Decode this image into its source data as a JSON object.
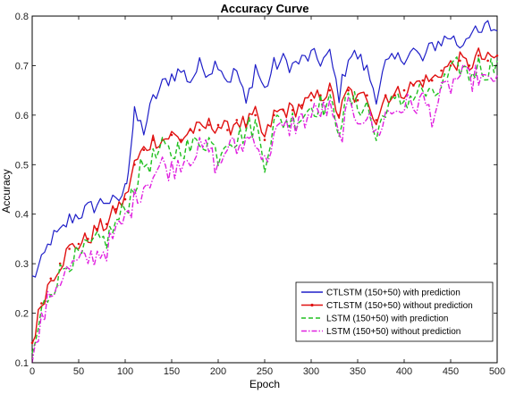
{
  "chart_data": {
    "type": "line",
    "title": "Accuracy Curve",
    "xlabel": "Epoch",
    "ylabel": "Accuracy",
    "xlim": [
      0,
      500
    ],
    "ylim": [
      0.1,
      0.8
    ],
    "xticks": [
      "0",
      "50",
      "100",
      "150",
      "200",
      "250",
      "300",
      "350",
      "400",
      "450",
      "500"
    ],
    "yticks": [
      "0.1",
      "0.2",
      "0.3",
      "0.4",
      "0.5",
      "0.6",
      "0.7",
      "0.8"
    ],
    "grid": false,
    "legend_position": "bottom-right",
    "series": [
      {
        "name": "CTLSTM (150+50) with prediction",
        "color": "#1f1fc8",
        "style": "solid",
        "x": [
          0,
          10,
          20,
          30,
          40,
          50,
          60,
          70,
          80,
          90,
          100,
          105,
          110,
          120,
          130,
          140,
          150,
          160,
          170,
          180,
          190,
          200,
          210,
          220,
          230,
          240,
          250,
          260,
          270,
          280,
          290,
          300,
          310,
          320,
          330,
          340,
          350,
          360,
          370,
          380,
          390,
          400,
          410,
          420,
          430,
          440,
          450,
          460,
          470,
          480,
          490,
          500
        ],
        "y": [
          0.27,
          0.3,
          0.35,
          0.36,
          0.39,
          0.4,
          0.41,
          0.42,
          0.43,
          0.42,
          0.45,
          0.52,
          0.6,
          0.57,
          0.63,
          0.66,
          0.68,
          0.69,
          0.67,
          0.7,
          0.69,
          0.71,
          0.67,
          0.69,
          0.62,
          0.7,
          0.65,
          0.7,
          0.71,
          0.7,
          0.71,
          0.72,
          0.71,
          0.72,
          0.64,
          0.72,
          0.72,
          0.69,
          0.64,
          0.7,
          0.71,
          0.72,
          0.73,
          0.71,
          0.74,
          0.75,
          0.76,
          0.74,
          0.77,
          0.76,
          0.78,
          0.77
        ]
      },
      {
        "name": "CTLSTM (150+50) without prediction",
        "color": "#e01010",
        "style": "solid-marker",
        "x": [
          0,
          10,
          20,
          30,
          40,
          50,
          60,
          70,
          80,
          90,
          100,
          110,
          120,
          130,
          140,
          150,
          160,
          170,
          180,
          190,
          200,
          210,
          220,
          230,
          240,
          250,
          260,
          270,
          280,
          290,
          300,
          310,
          320,
          330,
          340,
          350,
          360,
          370,
          380,
          390,
          400,
          410,
          420,
          430,
          440,
          450,
          460,
          470,
          480,
          490,
          500
        ],
        "y": [
          0.14,
          0.22,
          0.27,
          0.3,
          0.33,
          0.34,
          0.35,
          0.37,
          0.38,
          0.41,
          0.43,
          0.5,
          0.53,
          0.55,
          0.55,
          0.56,
          0.55,
          0.57,
          0.57,
          0.58,
          0.58,
          0.57,
          0.59,
          0.58,
          0.6,
          0.55,
          0.6,
          0.61,
          0.61,
          0.62,
          0.63,
          0.64,
          0.65,
          0.6,
          0.65,
          0.63,
          0.64,
          0.59,
          0.64,
          0.64,
          0.65,
          0.66,
          0.67,
          0.67,
          0.69,
          0.7,
          0.71,
          0.7,
          0.72,
          0.71,
          0.72
        ]
      },
      {
        "name": "LSTM (150+50) with prediction",
        "color": "#20c020",
        "style": "dashed",
        "x": [
          0,
          10,
          20,
          30,
          40,
          50,
          60,
          70,
          80,
          90,
          100,
          110,
          120,
          130,
          140,
          150,
          160,
          170,
          180,
          190,
          200,
          210,
          220,
          230,
          240,
          250,
          260,
          270,
          280,
          290,
          300,
          310,
          320,
          330,
          340,
          350,
          360,
          370,
          380,
          390,
          400,
          410,
          420,
          430,
          440,
          450,
          460,
          470,
          480,
          490,
          500
        ],
        "y": [
          0.11,
          0.2,
          0.25,
          0.28,
          0.31,
          0.31,
          0.33,
          0.34,
          0.35,
          0.38,
          0.41,
          0.46,
          0.5,
          0.51,
          0.53,
          0.52,
          0.54,
          0.53,
          0.55,
          0.55,
          0.52,
          0.56,
          0.55,
          0.57,
          0.58,
          0.51,
          0.58,
          0.59,
          0.59,
          0.6,
          0.62,
          0.62,
          0.62,
          0.58,
          0.63,
          0.62,
          0.62,
          0.55,
          0.62,
          0.62,
          0.63,
          0.64,
          0.65,
          0.63,
          0.66,
          0.68,
          0.7,
          0.68,
          0.7,
          0.69,
          0.71
        ]
      },
      {
        "name": "LSTM (150+50) without prediction",
        "color": "#e020e0",
        "style": "dashdot",
        "x": [
          0,
          10,
          20,
          30,
          40,
          50,
          60,
          70,
          80,
          90,
          100,
          110,
          120,
          130,
          140,
          150,
          160,
          170,
          180,
          190,
          200,
          210,
          220,
          230,
          240,
          250,
          260,
          270,
          280,
          290,
          300,
          310,
          320,
          330,
          340,
          350,
          360,
          370,
          380,
          390,
          400,
          410,
          420,
          430,
          440,
          450,
          460,
          470,
          480,
          490,
          500
        ],
        "y": [
          0.1,
          0.18,
          0.24,
          0.27,
          0.29,
          0.3,
          0.31,
          0.32,
          0.33,
          0.36,
          0.39,
          0.43,
          0.46,
          0.48,
          0.5,
          0.49,
          0.51,
          0.52,
          0.53,
          0.53,
          0.49,
          0.54,
          0.53,
          0.55,
          0.56,
          0.5,
          0.56,
          0.57,
          0.58,
          0.59,
          0.6,
          0.61,
          0.61,
          0.55,
          0.61,
          0.6,
          0.6,
          0.56,
          0.6,
          0.61,
          0.62,
          0.62,
          0.63,
          0.6,
          0.64,
          0.66,
          0.68,
          0.67,
          0.68,
          0.66,
          0.68
        ]
      }
    ]
  }
}
